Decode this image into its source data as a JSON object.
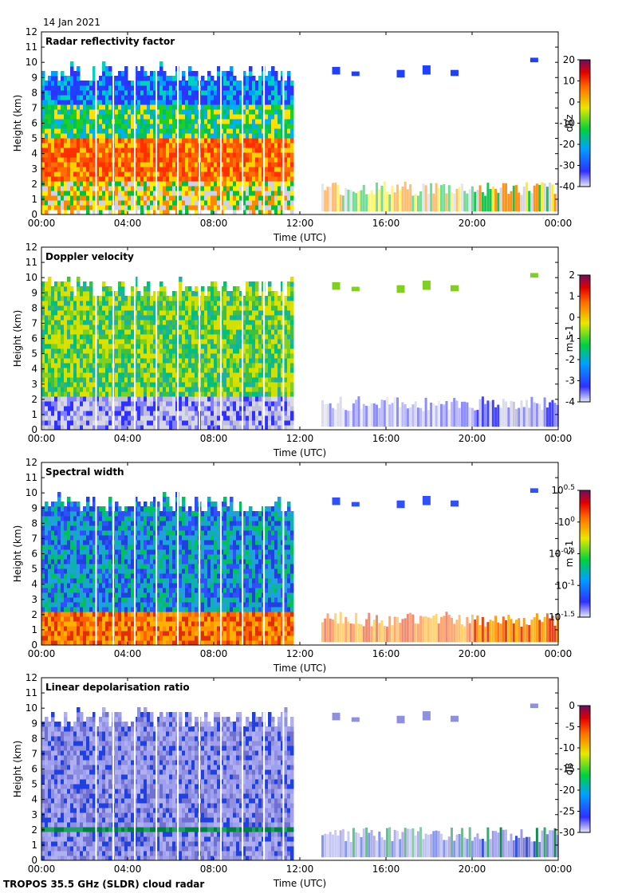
{
  "date": "14 Jan 2021",
  "footer": "TROPOS 35.5 GHz (SLDR) cloud radar",
  "chart_data": [
    {
      "type": "heatmap",
      "title": "Radar reflectivity factor",
      "xlabel": "Time (UTC)",
      "ylabel": "Height (km)",
      "x_ticks": [
        "00:00",
        "04:00",
        "08:00",
        "12:00",
        "16:00",
        "20:00",
        "00:00"
      ],
      "xlim_hours": [
        0,
        24
      ],
      "ylim": [
        0,
        12
      ],
      "y_ticks": [
        0,
        1,
        2,
        3,
        4,
        5,
        6,
        7,
        8,
        9,
        10,
        11,
        12
      ],
      "colorbar": {
        "label": "dBz",
        "range": [
          -40,
          20
        ],
        "ticks": [
          "20",
          "10",
          "0",
          "-10",
          "-20",
          "-30",
          "-40"
        ]
      },
      "colormap": "rainbow",
      "features": [
        {
          "name": "deep cloud layer",
          "t0": 0.0,
          "t1": 11.6,
          "base_km": 0.0,
          "top_km": 9.8
        },
        {
          "name": "cirrus",
          "t0": 13.5,
          "t1": 19.2,
          "base_km": 9.0,
          "top_km": 9.8
        },
        {
          "name": "low cloud",
          "t0": 13.0,
          "t1": 24.0,
          "base_km": 0.0,
          "top_km": 2.0
        }
      ]
    },
    {
      "type": "heatmap",
      "title": "Doppler velocity",
      "xlabel": "Time (UTC)",
      "ylabel": "Height (km)",
      "x_ticks": [
        "00:00",
        "04:00",
        "08:00",
        "12:00",
        "16:00",
        "20:00",
        "00:00"
      ],
      "xlim_hours": [
        0,
        24
      ],
      "ylim": [
        0,
        12
      ],
      "y_ticks": [
        0,
        1,
        2,
        3,
        4,
        5,
        6,
        7,
        8,
        9,
        10,
        11,
        12
      ],
      "colorbar": {
        "label": "m s-1",
        "range": [
          -4,
          2
        ],
        "ticks": [
          "2",
          "1",
          "0",
          "-1",
          "-2",
          "-3",
          "-4"
        ]
      },
      "colormap": "rainbow"
    },
    {
      "type": "heatmap",
      "title": "Spectral width",
      "xlabel": "Time (UTC)",
      "ylabel": "Height (km)",
      "x_ticks": [
        "00:00",
        "04:00",
        "08:00",
        "12:00",
        "16:00",
        "20:00",
        "00:00"
      ],
      "xlim_hours": [
        0,
        24
      ],
      "ylim": [
        0,
        12
      ],
      "y_ticks": [
        0,
        1,
        2,
        3,
        4,
        5,
        6,
        7,
        8,
        9,
        10,
        11,
        12
      ],
      "colorbar": {
        "label": "m s-1",
        "range": [
          -1.5,
          0.5
        ],
        "ticks": [
          "10^0.5",
          "10^0",
          "10^-0.5",
          "10^-1",
          "10^-1.5"
        ]
      },
      "colormap": "rainbow"
    },
    {
      "type": "heatmap",
      "title": "Linear depolarisation ratio",
      "xlabel": "Time (UTC)",
      "ylabel": "Height (km)",
      "x_ticks": [
        "00:00",
        "04:00",
        "08:00",
        "12:00",
        "16:00",
        "20:00",
        "00:00"
      ],
      "xlim_hours": [
        0,
        24
      ],
      "ylim": [
        0,
        12
      ],
      "y_ticks": [
        0,
        1,
        2,
        3,
        4,
        5,
        6,
        7,
        8,
        9,
        10,
        11,
        12
      ],
      "colorbar": {
        "label": "dB",
        "range": [
          -30,
          0
        ],
        "ticks": [
          "0",
          "-5",
          "-10",
          "-15",
          "-20",
          "-25",
          "-30"
        ]
      },
      "colormap": "rainbow"
    }
  ]
}
